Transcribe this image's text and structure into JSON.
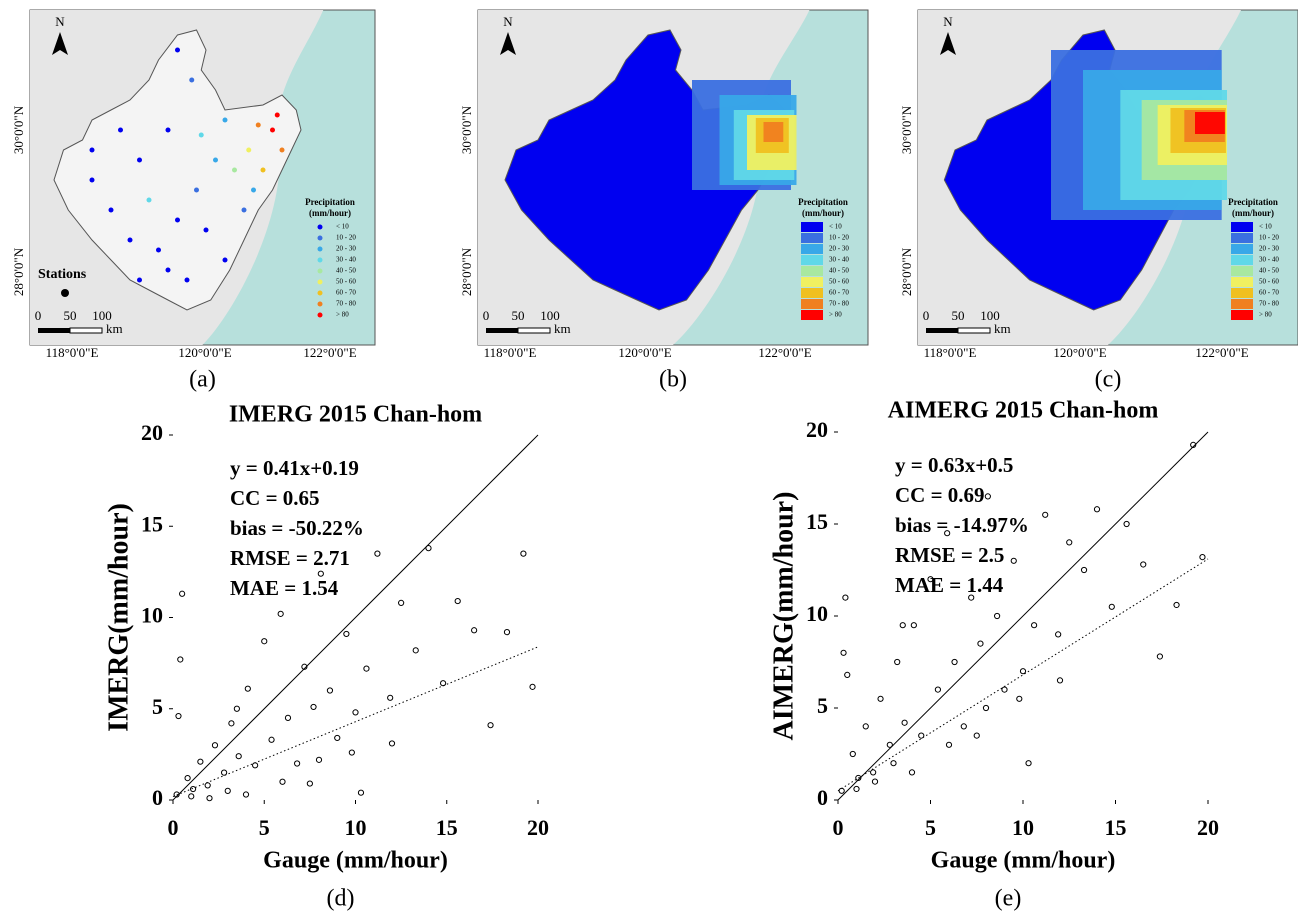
{
  "maps": {
    "north": "N",
    "xticks": [
      "118°0'0\"E",
      "120°0'0\"E",
      "122°0'0\"E"
    ],
    "yticks": [
      "30°0'0\"N",
      "28°0'0\"N"
    ],
    "legend_title": [
      "Precipitation",
      "(mm/hour)"
    ],
    "legend_classes": [
      "< 10",
      "10 - 20",
      "20 - 30",
      "30 - 40",
      "40 - 50",
      "50 - 60",
      "60 - 70",
      "70 - 80",
      "> 80"
    ],
    "legend_colors": [
      "#0000f0",
      "#3a6fe0",
      "#38a8e8",
      "#60d8e8",
      "#a8e8a0",
      "#f0f060",
      "#f0c020",
      "#f08020",
      "#ff0000"
    ],
    "scale": [
      "0",
      "50",
      "100",
      "km"
    ],
    "stations": "Stations",
    "panels": [
      "(a)",
      "(b)",
      "(c)"
    ]
  },
  "chart_data": [
    {
      "type": "scatter",
      "title": "IMERG 2015 Chan-hom",
      "xlabel": "Gauge (mm/hour)",
      "ylabel": "IMERG(mm/hour)",
      "panel": "(d)",
      "annotations": [
        "y = 0.41x+0.19",
        "CC = 0.65",
        "bias = -50.22%",
        "RMSE = 2.71",
        "MAE = 1.54"
      ],
      "xlim": [
        0,
        20
      ],
      "ylim": [
        0,
        20
      ],
      "xticks": [
        0,
        5,
        10,
        15,
        20
      ],
      "yticks": [
        0,
        5,
        10,
        15,
        20
      ],
      "color": "#000000",
      "fit_line": {
        "slope": 0.41,
        "intercept": 0.19
      },
      "reference_line": {
        "slope": 1,
        "intercept": 0
      },
      "x": [
        0.2,
        0.5,
        0.8,
        1.1,
        1.5,
        1.9,
        2.3,
        2.8,
        3.2,
        3.6,
        4.1,
        4.5,
        5.0,
        5.4,
        5.9,
        6.3,
        6.8,
        7.2,
        7.7,
        8.1,
        8.6,
        9.0,
        9.5,
        10.0,
        10.6,
        11.2,
        11.9,
        12.5,
        13.3,
        14.0,
        14.8,
        15.6,
        16.5,
        17.4,
        18.3,
        19.2,
        19.7,
        0.3,
        1.0,
        2.0,
        3.0,
        4.0,
        6.0,
        8.0,
        10.3,
        12.0,
        0.4,
        3.5,
        7.5,
        9.8
      ],
      "y": [
        0.3,
        11.3,
        1.2,
        0.6,
        2.1,
        0.8,
        3.0,
        1.5,
        4.2,
        2.4,
        6.1,
        1.9,
        8.7,
        3.3,
        10.2,
        4.5,
        2.0,
        7.3,
        5.1,
        12.4,
        6.0,
        3.4,
        9.1,
        4.8,
        7.2,
        13.5,
        5.6,
        10.8,
        8.2,
        13.8,
        6.4,
        10.9,
        9.3,
        4.1,
        9.2,
        13.5,
        6.2,
        4.6,
        0.2,
        0.1,
        0.5,
        0.3,
        1.0,
        2.2,
        0.4,
        3.1,
        7.7,
        5.0,
        0.9,
        2.6
      ]
    },
    {
      "type": "scatter",
      "title": "AIMERG 2015 Chan-hom",
      "xlabel": "Gauge (mm/hour)",
      "ylabel": "AIMERG(mm/hour)",
      "panel": "(e)",
      "annotations": [
        "y = 0.63x+0.5",
        "CC = 0.69",
        "bias = -14.97%",
        "RMSE = 2.5",
        "MAE = 1.44"
      ],
      "xlim": [
        0,
        20
      ],
      "ylim": [
        0,
        20
      ],
      "xticks": [
        0,
        5,
        10,
        15,
        20
      ],
      "yticks": [
        0,
        5,
        10,
        15,
        20
      ],
      "color": "#000000",
      "fit_line": {
        "slope": 0.63,
        "intercept": 0.5
      },
      "reference_line": {
        "slope": 1,
        "intercept": 0
      },
      "x": [
        0.2,
        0.5,
        0.8,
        1.1,
        1.5,
        1.9,
        2.3,
        2.8,
        3.2,
        3.6,
        4.1,
        4.5,
        5.0,
        5.4,
        5.9,
        6.3,
        6.8,
        7.2,
        7.7,
        8.1,
        8.6,
        9.0,
        9.5,
        10.0,
        10.6,
        11.2,
        11.9,
        12.5,
        13.3,
        14.0,
        14.8,
        15.6,
        16.5,
        17.4,
        18.3,
        19.2,
        19.7,
        0.3,
        1.0,
        2.0,
        3.0,
        4.0,
        6.0,
        8.0,
        10.3,
        12.0,
        0.4,
        3.5,
        7.5,
        9.8
      ],
      "y": [
        0.5,
        6.8,
        2.5,
        1.2,
        4.0,
        1.5,
        5.5,
        3.0,
        7.5,
        4.2,
        9.5,
        3.5,
        12.0,
        6.0,
        14.5,
        7.5,
        4.0,
        11.0,
        8.5,
        16.5,
        10.0,
        6.0,
        13.0,
        7.0,
        9.5,
        15.5,
        9.0,
        14.0,
        12.5,
        15.8,
        10.5,
        15.0,
        12.8,
        7.8,
        10.6,
        19.3,
        13.2,
        8.0,
        0.6,
        1.0,
        2.0,
        1.5,
        3.0,
        5.0,
        2.0,
        6.5,
        11.0,
        9.5,
        3.5,
        5.5
      ]
    }
  ]
}
